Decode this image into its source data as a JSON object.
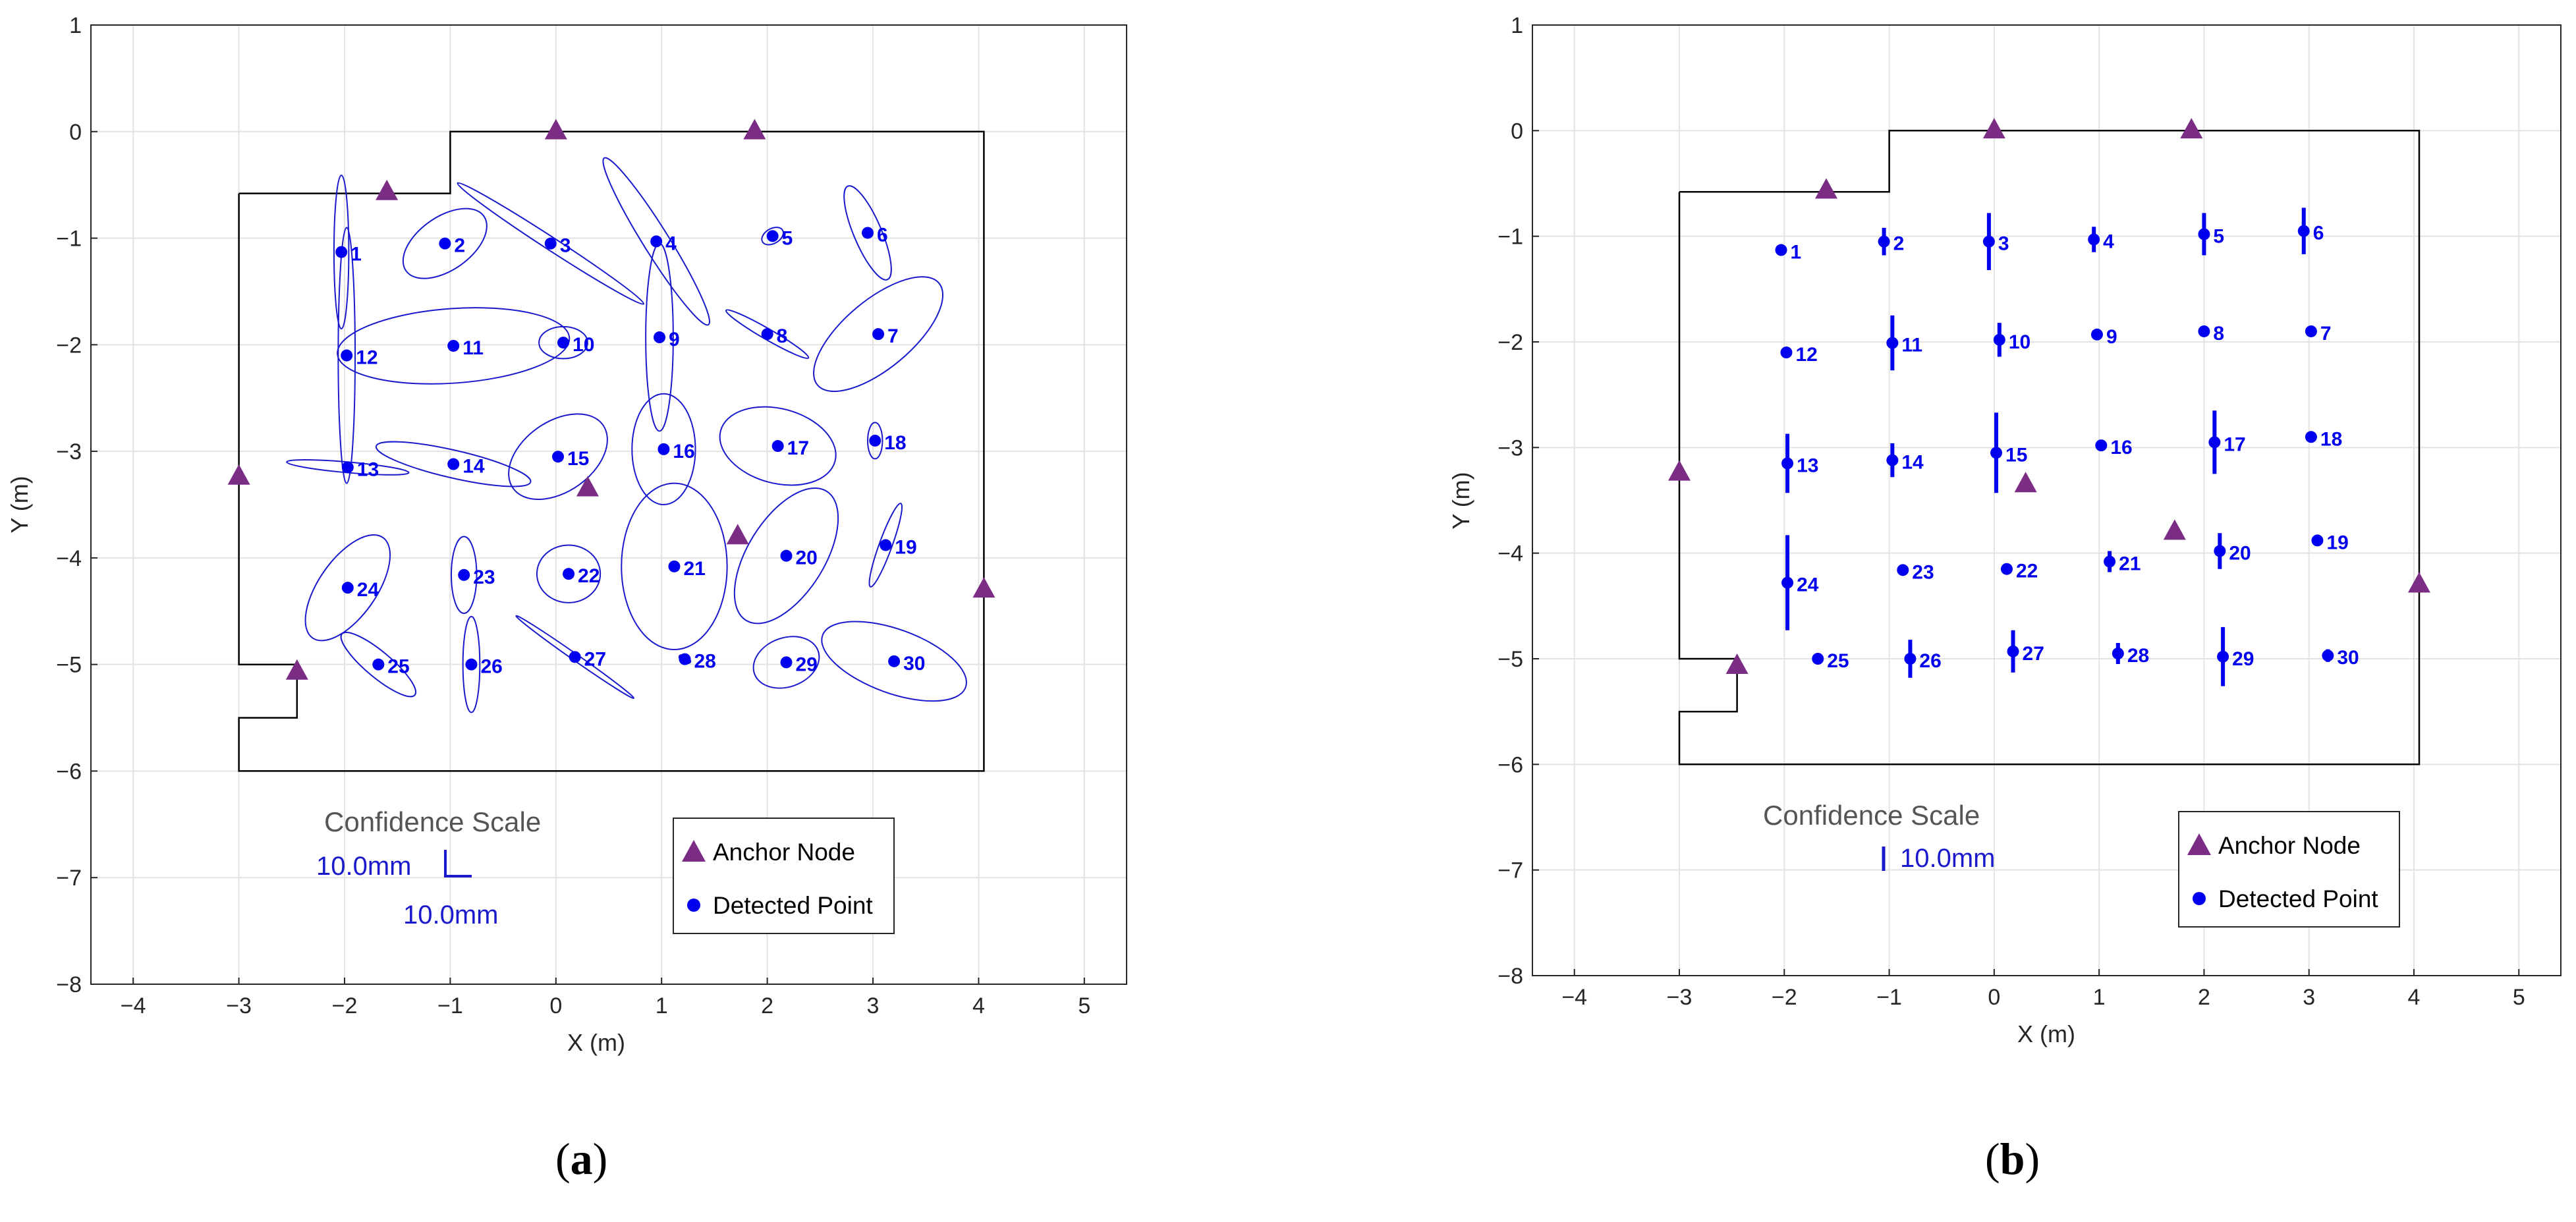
{
  "chart_data": [
    {
      "type": "scatter",
      "panel": "a",
      "xlabel": "X (m)",
      "ylabel": "Y (m)",
      "xlim": [
        -4.4,
        5.4
      ],
      "ylim": [
        -8,
        1
      ],
      "xticks": [
        -4,
        -3,
        -2,
        -1,
        0,
        1,
        2,
        3,
        4,
        5
      ],
      "yticks": [
        1,
        0,
        -1,
        -2,
        -3,
        -4,
        -5,
        -6,
        -7,
        -8
      ],
      "grid": true,
      "room_outline": [
        [
          -3,
          -0.58
        ],
        [
          -1.0,
          -0.58
        ],
        [
          -1.0,
          -0.12
        ],
        [
          -1.0,
          0
        ],
        [
          4.05,
          0
        ],
        [
          4.05,
          -6
        ],
        [
          -3,
          -6
        ],
        [
          -3,
          -5.5
        ],
        [
          -2.45,
          -5.5
        ],
        [
          -2.45,
          -5
        ],
        [
          -3,
          -5
        ],
        [
          -3,
          -0.58
        ]
      ],
      "anchors": [
        [
          -1.6,
          -0.55
        ],
        [
          0.0,
          0.02
        ],
        [
          1.88,
          0.02
        ],
        [
          -3.0,
          -3.22
        ],
        [
          0.3,
          -3.33
        ],
        [
          1.72,
          -3.78
        ],
        [
          4.05,
          -4.28
        ],
        [
          -2.45,
          -5.05
        ]
      ],
      "points": [
        {
          "id": "1",
          "x": -2.03,
          "y": -1.13,
          "rx": 0.07,
          "ry": 0.72,
          "angle": 0
        },
        {
          "id": "2",
          "x": -1.05,
          "y": -1.05,
          "rx": 0.45,
          "ry": 0.25,
          "angle": -35
        },
        {
          "id": "3",
          "x": -0.05,
          "y": -1.05,
          "rx": 1.05,
          "ry": 0.06,
          "angle": 33
        },
        {
          "id": "4",
          "x": 0.95,
          "y": -1.03,
          "rx": 0.93,
          "ry": 0.12,
          "angle": 58
        },
        {
          "id": "5",
          "x": 2.05,
          "y": -0.98,
          "rx": 0.11,
          "ry": 0.07,
          "angle": -30
        },
        {
          "id": "6",
          "x": 2.95,
          "y": -0.95,
          "rx": 0.48,
          "ry": 0.13,
          "angle": 67
        },
        {
          "id": "7",
          "x": 3.05,
          "y": -1.9,
          "rx": 0.75,
          "ry": 0.32,
          "angle": -40
        },
        {
          "id": "8",
          "x": 2.0,
          "y": -1.9,
          "rx": 0.45,
          "ry": 0.05,
          "angle": 30
        },
        {
          "id": "9",
          "x": 0.98,
          "y": -1.93,
          "rx": 0.13,
          "ry": 0.88,
          "angle": 0
        },
        {
          "id": "10",
          "x": 0.07,
          "y": -1.98,
          "rx": 0.23,
          "ry": 0.15,
          "angle": 0
        },
        {
          "id": "11",
          "x": -0.97,
          "y": -2.01,
          "rx": 1.1,
          "ry": 0.35,
          "angle": -4
        },
        {
          "id": "12",
          "x": -1.98,
          "y": -2.1,
          "rx": 0.08,
          "ry": 1.2,
          "angle": 0
        },
        {
          "id": "13",
          "x": -1.97,
          "y": -3.15,
          "rx": 0.58,
          "ry": 0.05,
          "angle": 5
        },
        {
          "id": "14",
          "x": -0.97,
          "y": -3.12,
          "rx": 0.75,
          "ry": 0.13,
          "angle": 13
        },
        {
          "id": "15",
          "x": 0.02,
          "y": -3.05,
          "rx": 0.52,
          "ry": 0.33,
          "angle": -35
        },
        {
          "id": "16",
          "x": 1.02,
          "y": -2.98,
          "rx": 0.3,
          "ry": 0.52,
          "angle": 0
        },
        {
          "id": "17",
          "x": 2.1,
          "y": -2.95,
          "rx": 0.56,
          "ry": 0.35,
          "angle": 15
        },
        {
          "id": "18",
          "x": 3.02,
          "y": -2.9,
          "rx": 0.07,
          "ry": 0.17,
          "angle": 0
        },
        {
          "id": "19",
          "x": 3.12,
          "y": -3.88,
          "rx": 0.42,
          "ry": 0.06,
          "angle": -70
        },
        {
          "id": "20",
          "x": 2.18,
          "y": -3.98,
          "rx": 0.72,
          "ry": 0.36,
          "angle": -58
        },
        {
          "id": "21",
          "x": 1.12,
          "y": -4.08,
          "rx": 0.5,
          "ry": 0.78,
          "angle": 0
        },
        {
          "id": "22",
          "x": 0.12,
          "y": -4.15,
          "rx": 0.3,
          "ry": 0.27,
          "angle": 0
        },
        {
          "id": "23",
          "x": -0.87,
          "y": -4.16,
          "rx": 0.12,
          "ry": 0.36,
          "angle": 0
        },
        {
          "id": "24",
          "x": -1.97,
          "y": -4.28,
          "rx": 0.58,
          "ry": 0.27,
          "angle": -55
        },
        {
          "id": "25",
          "x": -1.68,
          "y": -5.0,
          "rx": 0.45,
          "ry": 0.12,
          "angle": 40
        },
        {
          "id": "26",
          "x": -0.8,
          "y": -5.0,
          "rx": 0.08,
          "ry": 0.45,
          "angle": 0
        },
        {
          "id": "27",
          "x": 0.18,
          "y": -4.93,
          "rx": 0.68,
          "ry": 0.03,
          "angle": 35
        },
        {
          "id": "28",
          "x": 1.22,
          "y": -4.95,
          "rx": 0.06,
          "ry": 0.03,
          "angle": 30
        },
        {
          "id": "29",
          "x": 2.18,
          "y": -4.98,
          "rx": 0.32,
          "ry": 0.23,
          "angle": -20
        },
        {
          "id": "30",
          "x": 3.2,
          "y": -4.97,
          "rx": 0.72,
          "ry": 0.3,
          "angle": 20
        }
      ]
    },
    {
      "type": "scatter",
      "panel": "b",
      "xlabel": "X (m)",
      "ylabel": "Y (m)",
      "xlim": [
        -4.4,
        5.4
      ],
      "ylim": [
        -8,
        1
      ],
      "xticks": [
        -4,
        -3,
        -2,
        -1,
        0,
        1,
        2,
        3,
        4,
        5
      ],
      "yticks": [
        1,
        0,
        -1,
        -2,
        -3,
        -4,
        -5,
        -6,
        -7,
        -8
      ],
      "grid": true,
      "room_outline": [
        [
          -3,
          -0.58
        ],
        [
          -1.0,
          -0.58
        ],
        [
          -1.0,
          -0.12
        ],
        [
          -1.0,
          0
        ],
        [
          4.05,
          0
        ],
        [
          4.05,
          -6
        ],
        [
          -3,
          -6
        ],
        [
          -3,
          -5.5
        ],
        [
          -2.45,
          -5.5
        ],
        [
          -2.45,
          -5
        ],
        [
          -3,
          -5
        ],
        [
          -3,
          -0.58
        ]
      ],
      "anchors": [
        [
          -1.6,
          -0.55
        ],
        [
          0.0,
          0.02
        ],
        [
          1.88,
          0.02
        ],
        [
          -3.0,
          -3.22
        ],
        [
          0.3,
          -3.33
        ],
        [
          1.72,
          -3.78
        ],
        [
          4.05,
          -4.28
        ],
        [
          -2.45,
          -5.05
        ]
      ],
      "points": [
        {
          "id": "1",
          "x": -2.03,
          "y": -1.13,
          "err": 0.02
        },
        {
          "id": "2",
          "x": -1.05,
          "y": -1.05,
          "err": 0.13
        },
        {
          "id": "3",
          "x": -0.05,
          "y": -1.05,
          "err": 0.27
        },
        {
          "id": "4",
          "x": 0.95,
          "y": -1.03,
          "err": 0.12
        },
        {
          "id": "5",
          "x": 2.0,
          "y": -0.98,
          "err": 0.2
        },
        {
          "id": "6",
          "x": 2.95,
          "y": -0.95,
          "err": 0.22
        },
        {
          "id": "7",
          "x": 3.02,
          "y": -1.9,
          "err": 0.05
        },
        {
          "id": "8",
          "x": 2.0,
          "y": -1.9,
          "err": 0.03
        },
        {
          "id": "9",
          "x": 0.98,
          "y": -1.93,
          "err": 0.03
        },
        {
          "id": "10",
          "x": 0.05,
          "y": -1.98,
          "err": 0.16
        },
        {
          "id": "11",
          "x": -0.97,
          "y": -2.01,
          "err": 0.26
        },
        {
          "id": "12",
          "x": -1.98,
          "y": -2.1,
          "err": 0.03
        },
        {
          "id": "13",
          "x": -1.97,
          "y": -3.15,
          "err": 0.28
        },
        {
          "id": "14",
          "x": -0.97,
          "y": -3.12,
          "err": 0.16
        },
        {
          "id": "15",
          "x": 0.02,
          "y": -3.05,
          "err": 0.38
        },
        {
          "id": "16",
          "x": 1.02,
          "y": -2.98,
          "err": 0.03
        },
        {
          "id": "17",
          "x": 2.1,
          "y": -2.95,
          "err": 0.3
        },
        {
          "id": "18",
          "x": 3.02,
          "y": -2.9,
          "err": 0.04
        },
        {
          "id": "19",
          "x": 3.08,
          "y": -3.88,
          "err": 0.03
        },
        {
          "id": "20",
          "x": 2.15,
          "y": -3.98,
          "err": 0.17
        },
        {
          "id": "21",
          "x": 1.1,
          "y": -4.08,
          "err": 0.1
        },
        {
          "id": "22",
          "x": 0.12,
          "y": -4.15,
          "err": 0.03
        },
        {
          "id": "23",
          "x": -0.87,
          "y": -4.16,
          "err": 0.03
        },
        {
          "id": "24",
          "x": -1.97,
          "y": -4.28,
          "err": 0.45
        },
        {
          "id": "25",
          "x": -1.68,
          "y": -5.0,
          "err": 0.05
        },
        {
          "id": "26",
          "x": -0.8,
          "y": -5.0,
          "err": 0.18
        },
        {
          "id": "27",
          "x": 0.18,
          "y": -4.93,
          "err": 0.2
        },
        {
          "id": "28",
          "x": 1.18,
          "y": -4.95,
          "err": 0.1
        },
        {
          "id": "29",
          "x": 2.18,
          "y": -4.98,
          "err": 0.28
        },
        {
          "id": "30",
          "x": 3.18,
          "y": -4.97,
          "err": 0.06
        }
      ]
    }
  ],
  "legend": {
    "anchor_label": "Anchor Node",
    "point_label": "Detected Point"
  },
  "confidence": {
    "title": "Confidence Scale",
    "value_a_x": "10.0mm",
    "value_a_y": "10.0mm",
    "value_b": "10.0mm"
  },
  "subfigures": {
    "a_open": "(",
    "a_letter": "a",
    "a_close": ")",
    "b_open": "(",
    "b_letter": "b",
    "b_close": ")"
  },
  "colors": {
    "point": "#0000ee",
    "anchor": "#7b2d86",
    "ellipse": "#1a1acc",
    "room": "#000000",
    "grid": "#e3e3e3"
  }
}
